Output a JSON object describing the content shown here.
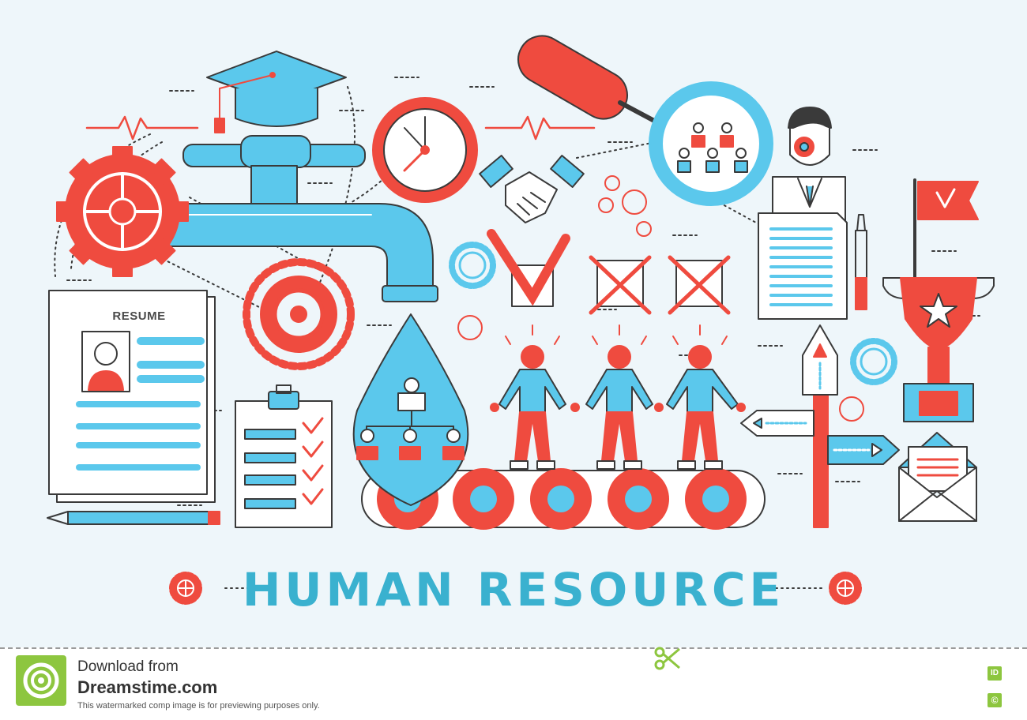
{
  "headline": "HUMAN RESOURCE",
  "resume_title": "RESUME",
  "footer": {
    "line1": "Download from",
    "line2": "Dreamstime.com",
    "line3": "This watermarked comp image is for previewing purposes only.",
    "id_badge": "ID",
    "copyright_badge": "©"
  },
  "icons": [
    "gear-icon",
    "graduation-cap-icon",
    "water-tap-icon",
    "clock-icon",
    "handshake-icon",
    "magnifier-icon",
    "businessman-icon",
    "resume-icon",
    "clipboard-checklist-icon",
    "org-chart-drop-icon",
    "people-conveyor-icon",
    "check-box-icon",
    "cross-box-icon",
    "signpost-icon",
    "trophy-icon",
    "flag-icon",
    "envelope-icon",
    "dollar-coin-icon",
    "pen-icon",
    "pencil-icon",
    "scissors-icon"
  ],
  "colors": {
    "red": "#ef4b3f",
    "blue": "#5bc8ec",
    "outline": "#3a3a3a",
    "background": "#eef6fa",
    "title": "#3ab1cf",
    "brand_green": "#8dc63f"
  }
}
